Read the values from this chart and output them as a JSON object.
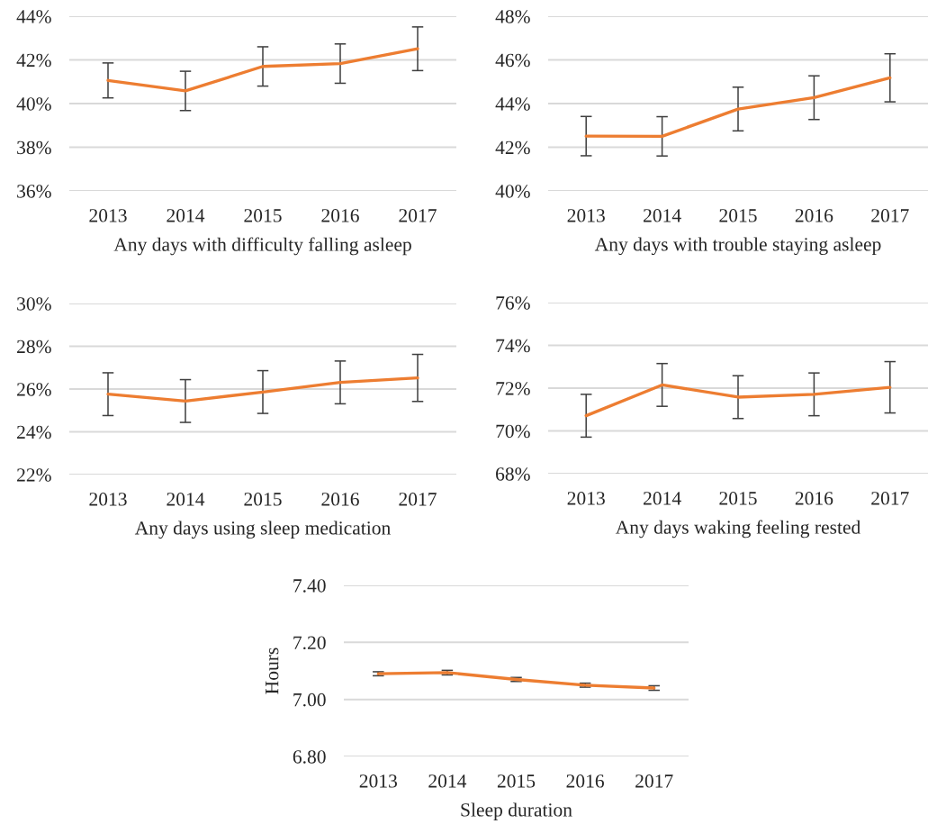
{
  "chart_data": [
    {
      "type": "line",
      "categories": [
        "2013",
        "2014",
        "2015",
        "2016",
        "2017"
      ],
      "xlabel": "Any days with difficulty falling asleep",
      "series": [
        {
          "color": "#ed7d31",
          "values": [
            41.06,
            40.58,
            41.7,
            41.83,
            42.51
          ],
          "errors": [
            0.8,
            0.9,
            0.9,
            0.9,
            1.0
          ]
        }
      ],
      "ylim": [
        36,
        44
      ],
      "yticks": [
        {
          "value": 36,
          "label": "36%"
        },
        {
          "value": 38,
          "label": "38%"
        },
        {
          "value": 40,
          "label": "40%"
        },
        {
          "value": 42,
          "label": "42%"
        },
        {
          "value": 44,
          "label": "44%"
        }
      ],
      "grid": "y"
    },
    {
      "type": "line",
      "categories": [
        "2013",
        "2014",
        "2015",
        "2016",
        "2017"
      ],
      "xlabel": "Any days with trouble staying asleep",
      "series": [
        {
          "color": "#ed7d31",
          "values": [
            42.51,
            42.5,
            43.75,
            44.27,
            45.18
          ],
          "errors": [
            0.9,
            0.9,
            1.0,
            1.0,
            1.1
          ]
        }
      ],
      "ylim": [
        40,
        48
      ],
      "yticks": [
        {
          "value": 40,
          "label": "40%"
        },
        {
          "value": 42,
          "label": "42%"
        },
        {
          "value": 44,
          "label": "44%"
        },
        {
          "value": 46,
          "label": "46%"
        },
        {
          "value": 48,
          "label": "48%"
        }
      ],
      "grid": "y"
    },
    {
      "type": "line",
      "categories": [
        "2013",
        "2014",
        "2015",
        "2016",
        "2017"
      ],
      "xlabel": "Any days using sleep medication",
      "series": [
        {
          "color": "#ed7d31",
          "values": [
            25.76,
            25.44,
            25.86,
            26.31,
            26.52
          ],
          "errors": [
            1.0,
            1.0,
            1.0,
            1.0,
            1.1
          ]
        }
      ],
      "ylim": [
        22,
        30
      ],
      "yticks": [
        {
          "value": 22,
          "label": "22%"
        },
        {
          "value": 24,
          "label": "24%"
        },
        {
          "value": 26,
          "label": "26%"
        },
        {
          "value": 28,
          "label": "28%"
        },
        {
          "value": 30,
          "label": "30%"
        }
      ],
      "grid": "y"
    },
    {
      "type": "line",
      "categories": [
        "2013",
        "2014",
        "2015",
        "2016",
        "2017"
      ],
      "xlabel": "Any days waking feeling rested",
      "series": [
        {
          "color": "#ed7d31",
          "values": [
            70.71,
            72.15,
            71.58,
            71.71,
            72.04
          ],
          "errors": [
            1.0,
            1.0,
            1.0,
            1.0,
            1.2
          ]
        }
      ],
      "ylim": [
        68,
        76
      ],
      "yticks": [
        {
          "value": 68,
          "label": "68%"
        },
        {
          "value": 70,
          "label": "70%"
        },
        {
          "value": 72,
          "label": "72%"
        },
        {
          "value": 74,
          "label": "74%"
        },
        {
          "value": 76,
          "label": "76%"
        }
      ],
      "grid": "y"
    },
    {
      "type": "line",
      "categories": [
        "2013",
        "2014",
        "2015",
        "2016",
        "2017"
      ],
      "xlabel": "Sleep duration",
      "ylabel": "Hours",
      "series": [
        {
          "color": "#ed7d31",
          "values": [
            7.09,
            7.094,
            7.07,
            7.05,
            7.04
          ],
          "errors": [
            0.007,
            0.008,
            0.007,
            0.007,
            0.008
          ]
        }
      ],
      "ylim": [
        6.8,
        7.4
      ],
      "yticks": [
        {
          "value": 6.8,
          "label": "6.80"
        },
        {
          "value": 7.0,
          "label": "7.00"
        },
        {
          "value": 7.2,
          "label": "7.20"
        },
        {
          "value": 7.4,
          "label": "7.40"
        }
      ],
      "grid": "y"
    }
  ]
}
